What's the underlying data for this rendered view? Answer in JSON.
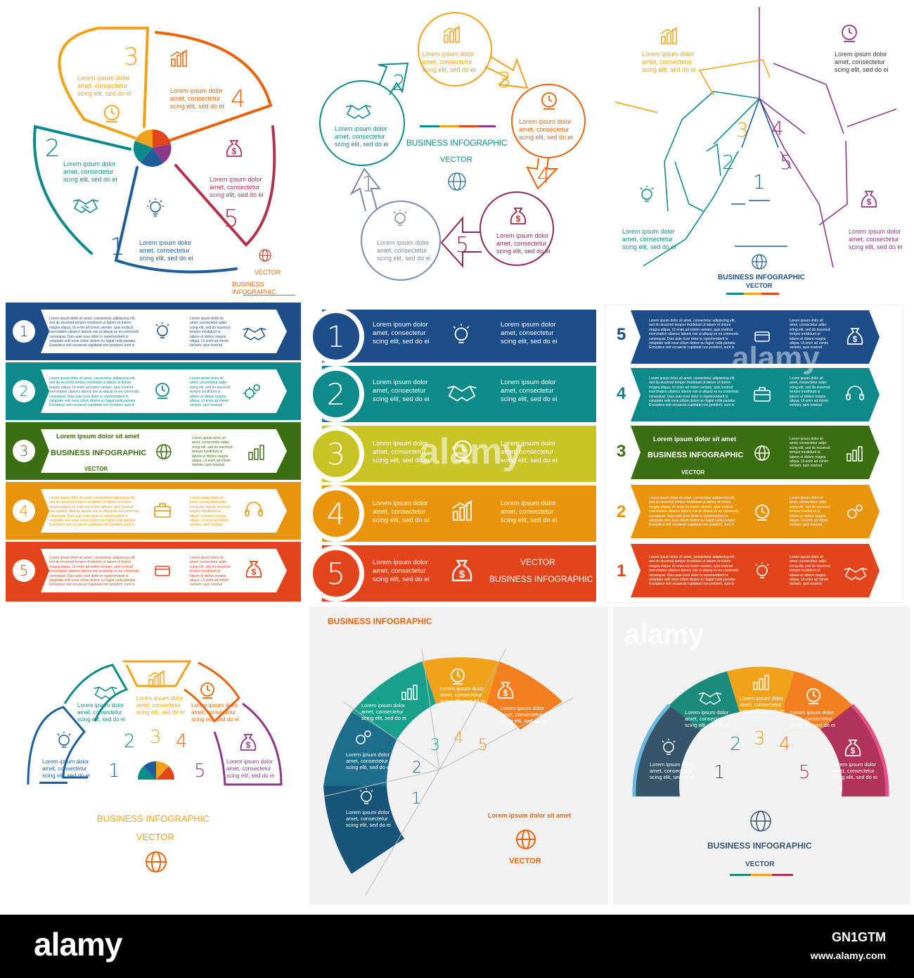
{
  "lorem3": "Lorem ipsum dolor\namet, consectetur\nscing elit, sed do ei",
  "lorem_short": "Lorem ipsum dolor sit amet",
  "lorem_small": "Lorem ipsum dolor sit amet, consectetur adipisicing elit,\nsed do eiusmod tempor incididunt ut labore et dolore\nmagna aliqua. Ut enim ad minim veniam, quis nostrud\nexercitation ullamco laboris nisi ut aliquip ex ea commodo\nconsequat. Duis aute irure dolor in reprehenderit in\nvoluptate velit esse cillum dolore eu fugiat nulla pariatur.\nExcepteur sint occaecat cupidatat non proident, sunt in",
  "lorem_small2": "Lorem ipsum dolor sit\namet, consectetur adipi-\nscing elit, sed do eiusmod\ntempor incididunt ut\nlabore et dolore magna\naliqua. Ut enim ad minim\nveniam, quis nostrud",
  "business_infographic": "BUSINESS INFOGRAPHIC",
  "vector": "VECTOR",
  "numbers": [
    "1",
    "2",
    "3",
    "4",
    "5"
  ],
  "watermark": "alamy",
  "stock": {
    "logo": "alamy",
    "image_id": "GN1GTM",
    "url": "www.alamy.com"
  },
  "colors": {
    "blue": "#1d4e89",
    "teal": "#0f8a8a",
    "green": "#3c6e14",
    "olive": "#c8c425",
    "orange": "#e8940c",
    "red": "#e2441b",
    "purple": "#8b3a8a",
    "gold": "#f0a21a",
    "pie_orange": "#f47f20"
  },
  "icons": [
    "bulb-icon",
    "handshake-icon",
    "clock-icon",
    "chart-icon",
    "money-bag-icon",
    "globe-icon",
    "gears-icon",
    "briefcase-icon",
    "headset-icon",
    "card-icon"
  ]
}
